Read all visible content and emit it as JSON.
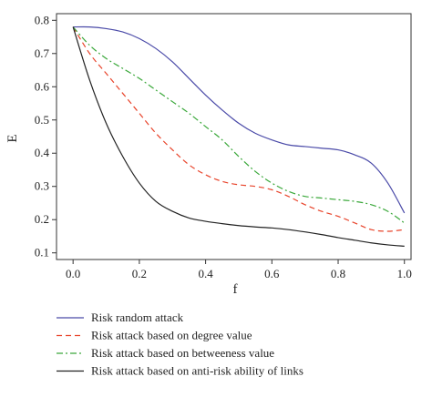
{
  "chart_data": {
    "type": "line",
    "title": "",
    "xlabel": "f",
    "ylabel": "E",
    "xlim": [
      -0.05,
      1.02
    ],
    "ylim": [
      0.08,
      0.82
    ],
    "xticks": [
      "0.0",
      "0.2",
      "0.4",
      "0.6",
      "0.8",
      "1.0"
    ],
    "yticks": [
      "0.1",
      "0.2",
      "0.3",
      "0.4",
      "0.5",
      "0.6",
      "0.7",
      "0.8"
    ],
    "grid": false,
    "legend_position": "below",
    "x": [
      0.0,
      0.05,
      0.1,
      0.15,
      0.2,
      0.25,
      0.3,
      0.35,
      0.4,
      0.45,
      0.5,
      0.55,
      0.6,
      0.65,
      0.7,
      0.75,
      0.8,
      0.85,
      0.9,
      0.95,
      1.0
    ],
    "series": [
      {
        "name": "Risk random attack",
        "color": "#4a4aa8",
        "dash": "solid",
        "values": [
          0.78,
          0.78,
          0.775,
          0.765,
          0.745,
          0.715,
          0.675,
          0.625,
          0.575,
          0.53,
          0.49,
          0.46,
          0.44,
          0.425,
          0.42,
          0.415,
          0.41,
          0.395,
          0.37,
          0.31,
          0.22
        ]
      },
      {
        "name": "Risk attack based on degree value",
        "color": "#e8432a",
        "dash": "dashed",
        "values": [
          0.78,
          0.7,
          0.64,
          0.58,
          0.52,
          0.46,
          0.41,
          0.365,
          0.335,
          0.315,
          0.305,
          0.3,
          0.29,
          0.27,
          0.245,
          0.225,
          0.21,
          0.19,
          0.17,
          0.165,
          0.17
        ]
      },
      {
        "name": "Risk attack based on betweeness value",
        "color": "#3aa83a",
        "dash": "dashdot",
        "values": [
          0.78,
          0.725,
          0.685,
          0.655,
          0.625,
          0.59,
          0.555,
          0.52,
          0.48,
          0.44,
          0.39,
          0.345,
          0.31,
          0.285,
          0.27,
          0.265,
          0.26,
          0.255,
          0.245,
          0.225,
          0.19
        ]
      },
      {
        "name": "Risk attack based on anti-risk ability of links",
        "color": "#222222",
        "dash": "solid",
        "values": [
          0.78,
          0.62,
          0.49,
          0.39,
          0.31,
          0.255,
          0.225,
          0.205,
          0.195,
          0.188,
          0.182,
          0.178,
          0.175,
          0.17,
          0.163,
          0.155,
          0.146,
          0.138,
          0.13,
          0.124,
          0.12
        ]
      }
    ]
  }
}
